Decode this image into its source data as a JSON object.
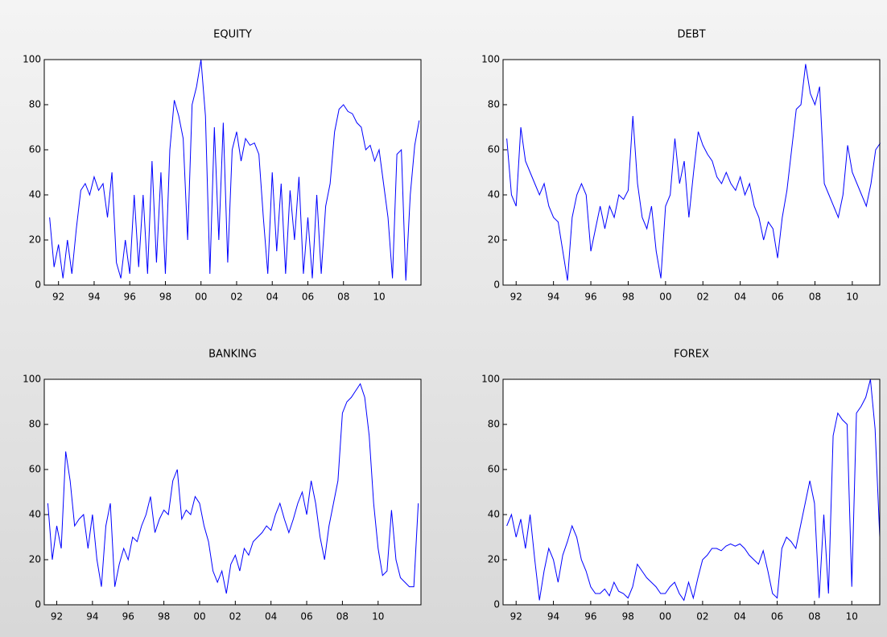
{
  "chart_data": [
    {
      "type": "line",
      "title": "EQUITY",
      "color": "#0000ff",
      "xlim": [
        1991.2,
        2012.35
      ],
      "ylim": [
        0,
        100
      ],
      "xticks": [
        {
          "value": 1992,
          "label": "92"
        },
        {
          "value": 1994,
          "label": "94"
        },
        {
          "value": 1996,
          "label": "96"
        },
        {
          "value": 1998,
          "label": "98"
        },
        {
          "value": 2000,
          "label": "00"
        },
        {
          "value": 2002,
          "label": "02"
        },
        {
          "value": 2004,
          "label": "04"
        },
        {
          "value": 2006,
          "label": "06"
        },
        {
          "value": 2008,
          "label": "08"
        },
        {
          "value": 2010,
          "label": "10"
        }
      ],
      "yticks": [
        0,
        20,
        40,
        60,
        80,
        100
      ],
      "x": [
        1991.5,
        1991.75,
        1992.0,
        1992.25,
        1992.5,
        1992.75,
        1993.0,
        1993.25,
        1993.5,
        1993.75,
        1994.0,
        1994.25,
        1994.5,
        1994.75,
        1995.0,
        1995.25,
        1995.5,
        1995.75,
        1996.0,
        1996.25,
        1996.5,
        1996.75,
        1997.0,
        1997.25,
        1997.5,
        1997.75,
        1998.0,
        1998.25,
        1998.5,
        1998.75,
        1999.0,
        1999.25,
        1999.5,
        1999.75,
        2000.0,
        2000.25,
        2000.5,
        2000.75,
        2001.0,
        2001.25,
        2001.5,
        2001.75,
        2002.0,
        2002.25,
        2002.5,
        2002.75,
        2003.0,
        2003.25,
        2003.5,
        2003.75,
        2004.0,
        2004.25,
        2004.5,
        2004.75,
        2005.0,
        2005.25,
        2005.5,
        2005.75,
        2006.0,
        2006.25,
        2006.5,
        2006.75,
        2007.0,
        2007.25,
        2007.5,
        2007.75,
        2008.0,
        2008.25,
        2008.5,
        2008.75,
        2009.0,
        2009.25,
        2009.5,
        2009.75,
        2010.0,
        2010.25,
        2010.5,
        2010.75,
        2011.0,
        2011.25,
        2011.5,
        2011.75,
        2012.0,
        2012.25
      ],
      "values": [
        30,
        8,
        18,
        3,
        20,
        5,
        25,
        42,
        45,
        40,
        48,
        42,
        45,
        30,
        50,
        10,
        3,
        20,
        5,
        40,
        8,
        40,
        5,
        55,
        10,
        50,
        5,
        60,
        82,
        75,
        65,
        20,
        80,
        88,
        100,
        75,
        5,
        70,
        20,
        72,
        10,
        60,
        68,
        55,
        65,
        62,
        63,
        58,
        30,
        5,
        50,
        15,
        45,
        5,
        42,
        20,
        48,
        5,
        30,
        3,
        40,
        5,
        35,
        45,
        68,
        78,
        80,
        77,
        76,
        72,
        70,
        60,
        62,
        55,
        60,
        45,
        30,
        3,
        58,
        60,
        2,
        40,
        62,
        73
      ]
    },
    {
      "type": "line",
      "title": "DEBT",
      "color": "#0000ff",
      "xlim": [
        1991.3,
        2011.47
      ],
      "ylim": [
        0,
        100
      ],
      "xticks": [
        {
          "value": 1992,
          "label": "92"
        },
        {
          "value": 1994,
          "label": "94"
        },
        {
          "value": 1996,
          "label": "96"
        },
        {
          "value": 1998,
          "label": "98"
        },
        {
          "value": 2000,
          "label": "00"
        },
        {
          "value": 2002,
          "label": "02"
        },
        {
          "value": 2004,
          "label": "04"
        },
        {
          "value": 2006,
          "label": "06"
        },
        {
          "value": 2008,
          "label": "08"
        },
        {
          "value": 2010,
          "label": "10"
        }
      ],
      "yticks": [
        0,
        20,
        40,
        60,
        80,
        100
      ],
      "x": [
        1991.5,
        1991.75,
        1992.0,
        1992.25,
        1992.5,
        1992.75,
        1993.0,
        1993.25,
        1993.5,
        1993.75,
        1994.0,
        1994.25,
        1994.5,
        1994.75,
        1995.0,
        1995.25,
        1995.5,
        1995.75,
        1996.0,
        1996.25,
        1996.5,
        1996.75,
        1997.0,
        1997.25,
        1997.5,
        1997.75,
        1998.0,
        1998.25,
        1998.5,
        1998.75,
        1999.0,
        1999.25,
        1999.5,
        1999.75,
        2000.0,
        2000.25,
        2000.5,
        2000.75,
        2001.0,
        2001.25,
        2001.5,
        2001.75,
        2002.0,
        2002.25,
        2002.5,
        2002.75,
        2003.0,
        2003.25,
        2003.5,
        2003.75,
        2004.0,
        2004.25,
        2004.5,
        2004.75,
        2005.0,
        2005.25,
        2005.5,
        2005.75,
        2006.0,
        2006.25,
        2006.5,
        2006.75,
        2007.0,
        2007.25,
        2007.5,
        2007.75,
        2008.0,
        2008.25,
        2008.5,
        2008.75,
        2009.0,
        2009.25,
        2009.5,
        2009.75,
        2010.0,
        2010.25,
        2010.5,
        2010.75,
        2011.0,
        2011.25,
        2011.5
      ],
      "values": [
        65,
        40,
        35,
        70,
        55,
        50,
        45,
        40,
        45,
        35,
        30,
        28,
        15,
        2,
        30,
        40,
        45,
        40,
        15,
        25,
        35,
        25,
        35,
        30,
        40,
        38,
        42,
        75,
        45,
        30,
        25,
        35,
        15,
        3,
        35,
        40,
        65,
        45,
        55,
        30,
        50,
        68,
        62,
        58,
        55,
        48,
        45,
        50,
        45,
        42,
        48,
        40,
        45,
        35,
        30,
        20,
        28,
        25,
        12,
        30,
        42,
        60,
        78,
        80,
        98,
        85,
        80,
        88,
        45,
        40,
        35,
        30,
        40,
        62,
        50,
        45,
        40,
        35,
        45,
        60,
        63
      ]
    },
    {
      "type": "line",
      "title": "BANKING",
      "color": "#0000ff",
      "xlim": [
        1991.3,
        2012.4
      ],
      "ylim": [
        0,
        100
      ],
      "xticks": [
        {
          "value": 1992,
          "label": "92"
        },
        {
          "value": 1994,
          "label": "94"
        },
        {
          "value": 1996,
          "label": "96"
        },
        {
          "value": 1998,
          "label": "98"
        },
        {
          "value": 2000,
          "label": "00"
        },
        {
          "value": 2002,
          "label": "02"
        },
        {
          "value": 2004,
          "label": "04"
        },
        {
          "value": 2006,
          "label": "06"
        },
        {
          "value": 2008,
          "label": "08"
        },
        {
          "value": 2010,
          "label": "10"
        }
      ],
      "yticks": [
        0,
        20,
        40,
        60,
        80,
        100
      ],
      "x": [
        1991.5,
        1991.75,
        1992.0,
        1992.25,
        1992.5,
        1992.75,
        1993.0,
        1993.25,
        1993.5,
        1993.75,
        1994.0,
        1994.25,
        1994.5,
        1994.75,
        1995.0,
        1995.25,
        1995.5,
        1995.75,
        1996.0,
        1996.25,
        1996.5,
        1996.75,
        1997.0,
        1997.25,
        1997.5,
        1997.75,
        1998.0,
        1998.25,
        1998.5,
        1998.75,
        1999.0,
        1999.25,
        1999.5,
        1999.75,
        2000.0,
        2000.25,
        2000.5,
        2000.75,
        2001.0,
        2001.25,
        2001.5,
        2001.75,
        2002.0,
        2002.25,
        2002.5,
        2002.75,
        2003.0,
        2003.25,
        2003.5,
        2003.75,
        2004.0,
        2004.25,
        2004.5,
        2004.75,
        2005.0,
        2005.25,
        2005.5,
        2005.75,
        2006.0,
        2006.25,
        2006.5,
        2006.75,
        2007.0,
        2007.25,
        2007.5,
        2007.75,
        2008.0,
        2008.25,
        2008.5,
        2008.75,
        2009.0,
        2009.25,
        2009.5,
        2009.75,
        2010.0,
        2010.25,
        2010.5,
        2010.75,
        2011.0,
        2011.25,
        2011.5,
        2011.75,
        2012.0,
        2012.25
      ],
      "values": [
        45,
        20,
        35,
        25,
        68,
        55,
        35,
        38,
        40,
        25,
        40,
        20,
        8,
        35,
        45,
        8,
        18,
        25,
        20,
        30,
        28,
        35,
        40,
        48,
        32,
        38,
        42,
        40,
        55,
        60,
        38,
        42,
        40,
        48,
        45,
        35,
        28,
        15,
        10,
        15,
        5,
        18,
        22,
        15,
        25,
        22,
        28,
        30,
        32,
        35,
        33,
        40,
        45,
        38,
        32,
        38,
        45,
        50,
        40,
        55,
        45,
        30,
        20,
        35,
        45,
        55,
        85,
        90,
        92,
        95,
        98,
        92,
        75,
        45,
        25,
        13,
        15,
        42,
        20,
        12,
        10,
        8,
        8,
        45
      ]
    },
    {
      "type": "line",
      "title": "FOREX",
      "color": "#0000ff",
      "xlim": [
        1991.3,
        2011.5
      ],
      "ylim": [
        0,
        100
      ],
      "xticks": [
        {
          "value": 1992,
          "label": "92"
        },
        {
          "value": 1994,
          "label": "94"
        },
        {
          "value": 1996,
          "label": "96"
        },
        {
          "value": 1998,
          "label": "98"
        },
        {
          "value": 2000,
          "label": "00"
        },
        {
          "value": 2002,
          "label": "02"
        },
        {
          "value": 2004,
          "label": "04"
        },
        {
          "value": 2006,
          "label": "06"
        },
        {
          "value": 2008,
          "label": "08"
        },
        {
          "value": 2010,
          "label": "10"
        }
      ],
      "yticks": [
        0,
        20,
        40,
        60,
        80,
        100
      ],
      "x": [
        1991.5,
        1991.75,
        1992.0,
        1992.25,
        1992.5,
        1992.75,
        1993.0,
        1993.25,
        1993.5,
        1993.75,
        1994.0,
        1994.25,
        1994.5,
        1994.75,
        1995.0,
        1995.25,
        1995.5,
        1995.75,
        1996.0,
        1996.25,
        1996.5,
        1996.75,
        1997.0,
        1997.25,
        1997.5,
        1997.75,
        1998.0,
        1998.25,
        1998.5,
        1998.75,
        1999.0,
        1999.25,
        1999.5,
        1999.75,
        2000.0,
        2000.25,
        2000.5,
        2000.75,
        2001.0,
        2001.25,
        2001.5,
        2001.75,
        2002.0,
        2002.25,
        2002.5,
        2002.75,
        2003.0,
        2003.25,
        2003.5,
        2003.75,
        2004.0,
        2004.25,
        2004.5,
        2004.75,
        2005.0,
        2005.25,
        2005.5,
        2005.75,
        2006.0,
        2006.25,
        2006.5,
        2006.75,
        2007.0,
        2007.25,
        2007.5,
        2007.75,
        2008.0,
        2008.25,
        2008.5,
        2008.75,
        2009.0,
        2009.25,
        2009.5,
        2009.75,
        2010.0,
        2010.25,
        2010.5,
        2010.75,
        2011.0,
        2011.25,
        2011.5
      ],
      "values": [
        35,
        40,
        30,
        38,
        25,
        40,
        20,
        2,
        15,
        25,
        20,
        10,
        22,
        28,
        35,
        30,
        20,
        15,
        8,
        5,
        5,
        7,
        4,
        10,
        6,
        5,
        3,
        8,
        18,
        15,
        12,
        10,
        8,
        5,
        5,
        8,
        10,
        5,
        2,
        10,
        3,
        12,
        20,
        22,
        25,
        25,
        24,
        26,
        27,
        26,
        27,
        25,
        22,
        20,
        18,
        24,
        15,
        5,
        3,
        25,
        30,
        28,
        25,
        35,
        45,
        55,
        45,
        3,
        40,
        5,
        75,
        85,
        82,
        80,
        8,
        85,
        88,
        92,
        100,
        78,
        30
      ]
    }
  ]
}
